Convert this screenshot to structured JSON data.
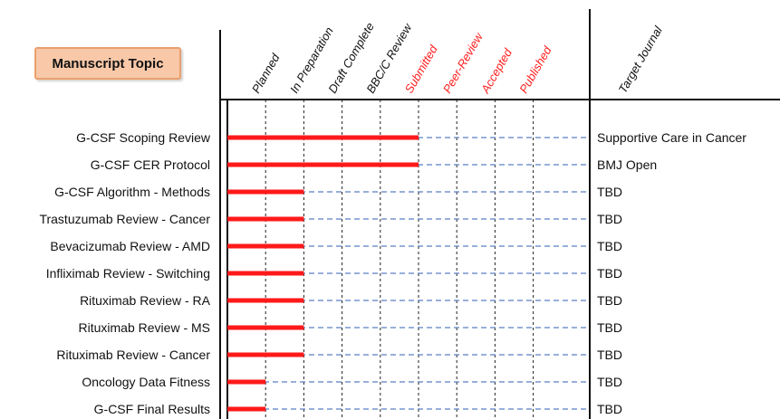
{
  "header": {
    "topic_label": "Manuscript Topic"
  },
  "chart_data": {
    "type": "gantt-bar",
    "stages": [
      "Planned",
      "In Preparation",
      "Draft Complete",
      "BBC/C Review",
      "Submitted",
      "Peer-Review",
      "Accepted",
      "Published"
    ],
    "stage_colors": [
      "#111111",
      "#111111",
      "#111111",
      "#111111",
      "#ff2020",
      "#ff2020",
      "#ff2020",
      "#ff2020"
    ],
    "journal_header": "Target Journal",
    "topics": [
      "G-CSF Scoping Review",
      "G-CSF CER Protocol",
      "G-CSF Algorithm - Methods",
      "Trastuzumab Review - Cancer",
      "Bevacizumab Review - AMD",
      "Infliximab Review - Switching",
      "Rituximab Review - RA",
      "Rituximab Review - MS",
      "Rituximab Review - Cancer",
      "Oncology Data Fitness",
      "G-CSF Final Results"
    ],
    "progress": [
      5,
      5,
      2,
      2,
      2,
      2,
      2,
      2,
      2,
      1,
      1
    ],
    "journals": [
      "Supportive Care in Cancer",
      "BMJ Open",
      "TBD",
      "TBD",
      "TBD",
      "TBD",
      "TBD",
      "TBD",
      "TBD",
      "TBD",
      "TBD"
    ],
    "bar_color": "#ff1a1a",
    "dash_line_color": "#5b7fc4"
  }
}
